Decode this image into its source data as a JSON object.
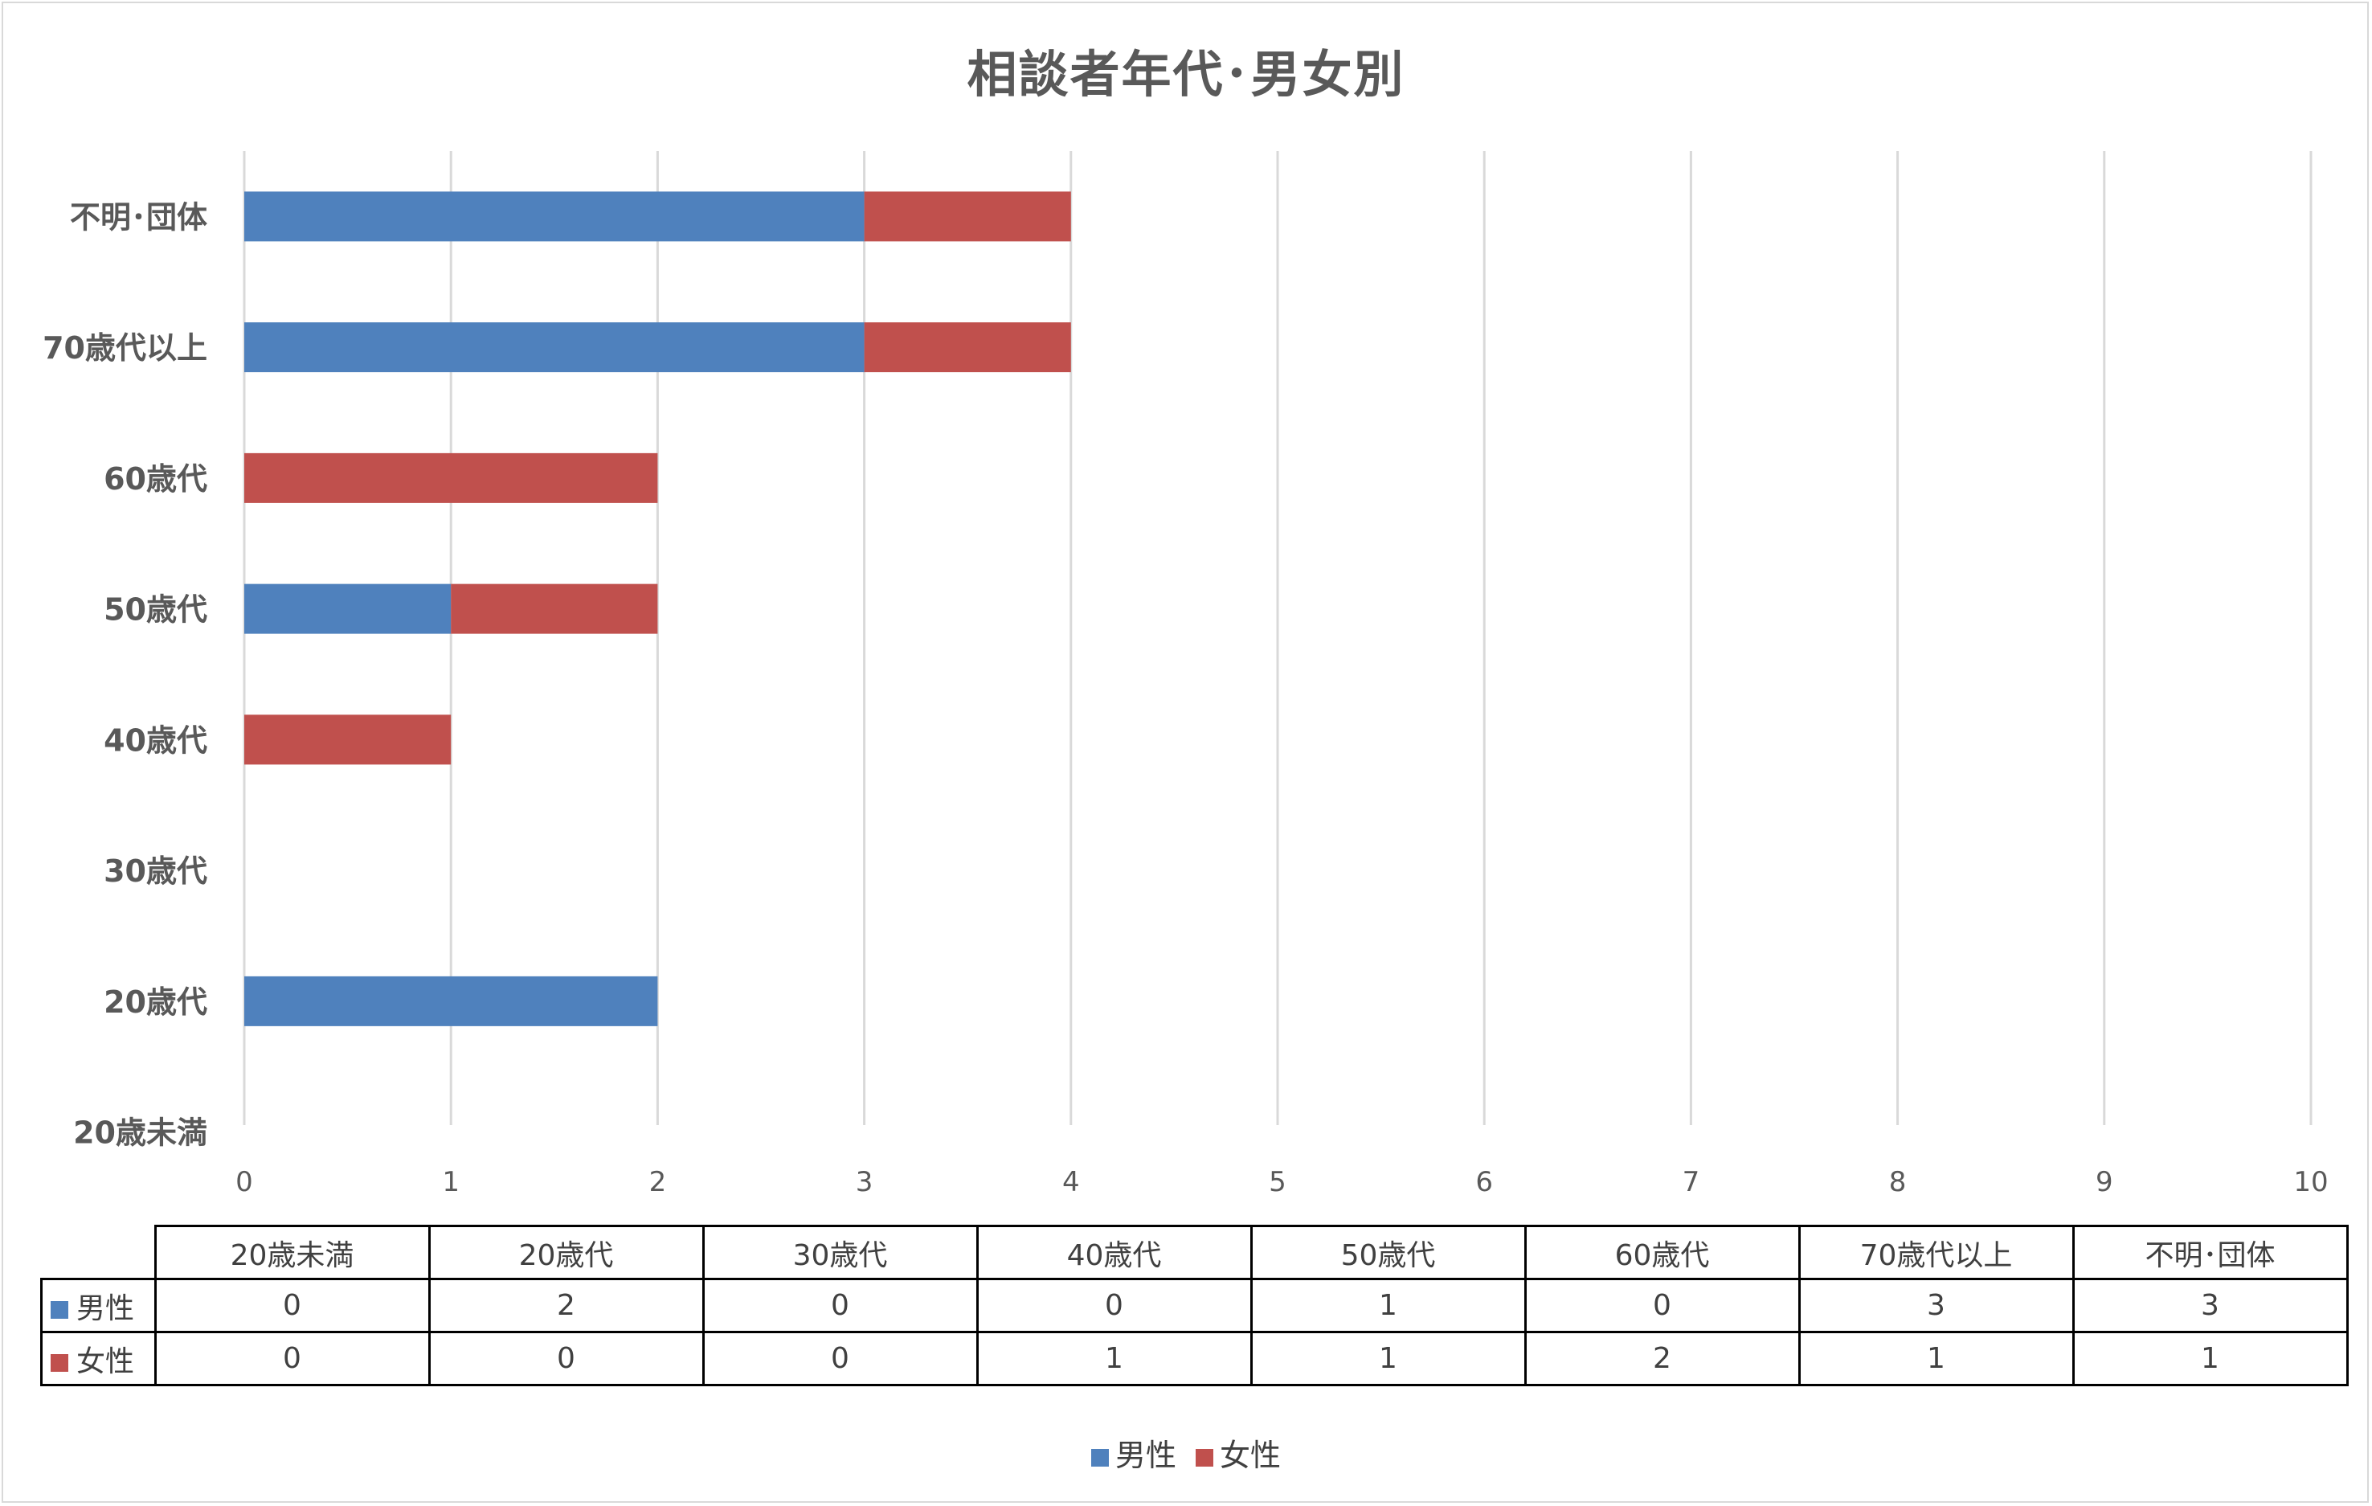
{
  "colors": {
    "male": "#4F81BD",
    "female": "#C0504D",
    "grid": "#d9d9d9",
    "text": "#595959"
  },
  "chart_data": {
    "type": "bar",
    "orientation": "horizontal",
    "stacked": true,
    "title": "相談者年代･男女別",
    "categories": [
      "20歳未満",
      "20歳代",
      "30歳代",
      "40歳代",
      "50歳代",
      "60歳代",
      "70歳代以上",
      "不明･団体"
    ],
    "series": [
      {
        "name": "男性",
        "values": [
          0,
          2,
          0,
          0,
          1,
          0,
          3,
          3
        ]
      },
      {
        "name": "女性",
        "values": [
          0,
          0,
          0,
          1,
          1,
          2,
          1,
          1
        ]
      }
    ],
    "xlim": [
      0,
      10
    ],
    "xticks": [
      0,
      1,
      2,
      3,
      4,
      5,
      6,
      7,
      8,
      9,
      10
    ],
    "grid": "vertical",
    "legend": "bottom",
    "data_table": true
  }
}
